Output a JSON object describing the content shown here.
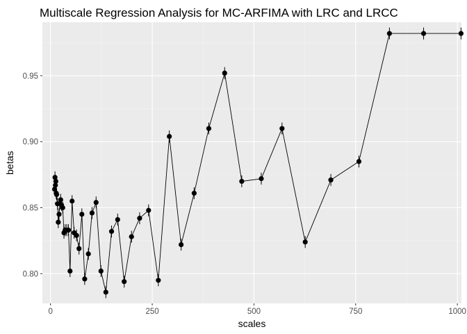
{
  "chart_data": {
    "type": "line",
    "title": "Multiscale Regression Analysis for MC-ARFIMA with LRC and LRCC",
    "xlabel": "scales",
    "ylabel": "betas",
    "xlim": [
      -20,
      1010
    ],
    "ylim": [
      0.7775,
      0.9905
    ],
    "x_ticks": [
      0,
      250,
      500,
      750,
      1000
    ],
    "x_tick_labels": [
      "0",
      "250",
      "500",
      "750",
      "1000"
    ],
    "y_ticks": [
      0.8,
      0.85,
      0.9,
      0.95
    ],
    "y_tick_labels": [
      "0.80",
      "0.85",
      "0.90",
      "0.95"
    ],
    "grid": true,
    "colors": {
      "panel": "#ebebeb",
      "grid_major": "#ffffff",
      "grid_minor": "#f4f4f4",
      "line": "#000000",
      "point": "#000000"
    },
    "series": [
      {
        "x": [
          10,
          11,
          12,
          13,
          14,
          15,
          17,
          19,
          21,
          23,
          25,
          27,
          30,
          33,
          36,
          40,
          44,
          48,
          53,
          58,
          64,
          70,
          77,
          84,
          93,
          102,
          112,
          124,
          136,
          150,
          165,
          181,
          199,
          219,
          241,
          265,
          292,
          321,
          353,
          389,
          428,
          470,
          518,
          569,
          626,
          689,
          758,
          833,
          917,
          1009
        ],
        "y": [
          0.864,
          0.873,
          0.867,
          0.87,
          0.861,
          0.86,
          0.853,
          0.839,
          0.845,
          0.853,
          0.856,
          0.852,
          0.85,
          0.831,
          0.833,
          0.833,
          0.833,
          0.802,
          0.855,
          0.831,
          0.829,
          0.819,
          0.845,
          0.796,
          0.815,
          0.846,
          0.854,
          0.802,
          0.786,
          0.832,
          0.841,
          0.794,
          0.828,
          0.842,
          0.848,
          0.795,
          0.904,
          0.822,
          0.861,
          0.91,
          0.952,
          0.87,
          0.872,
          0.91,
          0.824,
          0.871,
          0.885,
          0.982,
          0.982,
          0.982
        ],
        "error": [
          0.0045,
          0.0045,
          0.0045,
          0.0045,
          0.0045,
          0.0045,
          0.0045,
          0.0045,
          0.0045,
          0.0045,
          0.0045,
          0.0045,
          0.0045,
          0.0045,
          0.0045,
          0.0045,
          0.0045,
          0.0045,
          0.0045,
          0.0045,
          0.0045,
          0.0045,
          0.0045,
          0.0045,
          0.0045,
          0.0045,
          0.0045,
          0.0045,
          0.0045,
          0.0045,
          0.0045,
          0.0045,
          0.0045,
          0.0045,
          0.0045,
          0.0045,
          0.0045,
          0.0045,
          0.0045,
          0.0045,
          0.0045,
          0.0045,
          0.0045,
          0.0045,
          0.0045,
          0.0045,
          0.0045,
          0.0045,
          0.0045,
          0.0045
        ]
      }
    ]
  }
}
